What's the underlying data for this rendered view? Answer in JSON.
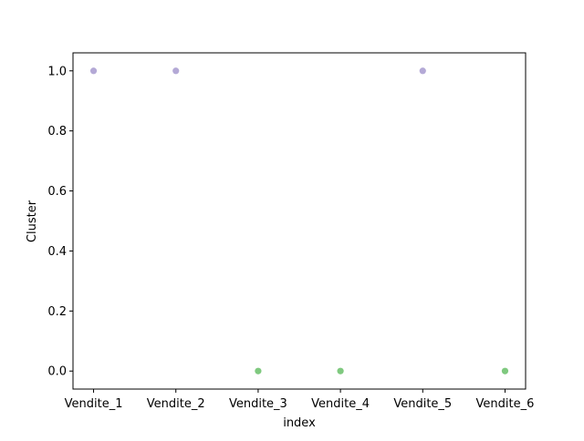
{
  "chart_data": {
    "type": "scatter",
    "title": "",
    "xlabel": "index",
    "ylabel": "Cluster",
    "categories": [
      "Vendite_1",
      "Vendite_2",
      "Vendite_3",
      "Vendite_4",
      "Vendite_5",
      "Vendite_6"
    ],
    "values": [
      1,
      1,
      0,
      0,
      1,
      0
    ],
    "ylim": [
      -0.06,
      1.06
    ],
    "yticks": [
      "0.0",
      "0.2",
      "0.4",
      "0.6",
      "0.8",
      "1.0"
    ],
    "grid": false,
    "legend": "none",
    "colors": {
      "1": "#b4a9d6",
      "0": "#7fc97f"
    }
  }
}
